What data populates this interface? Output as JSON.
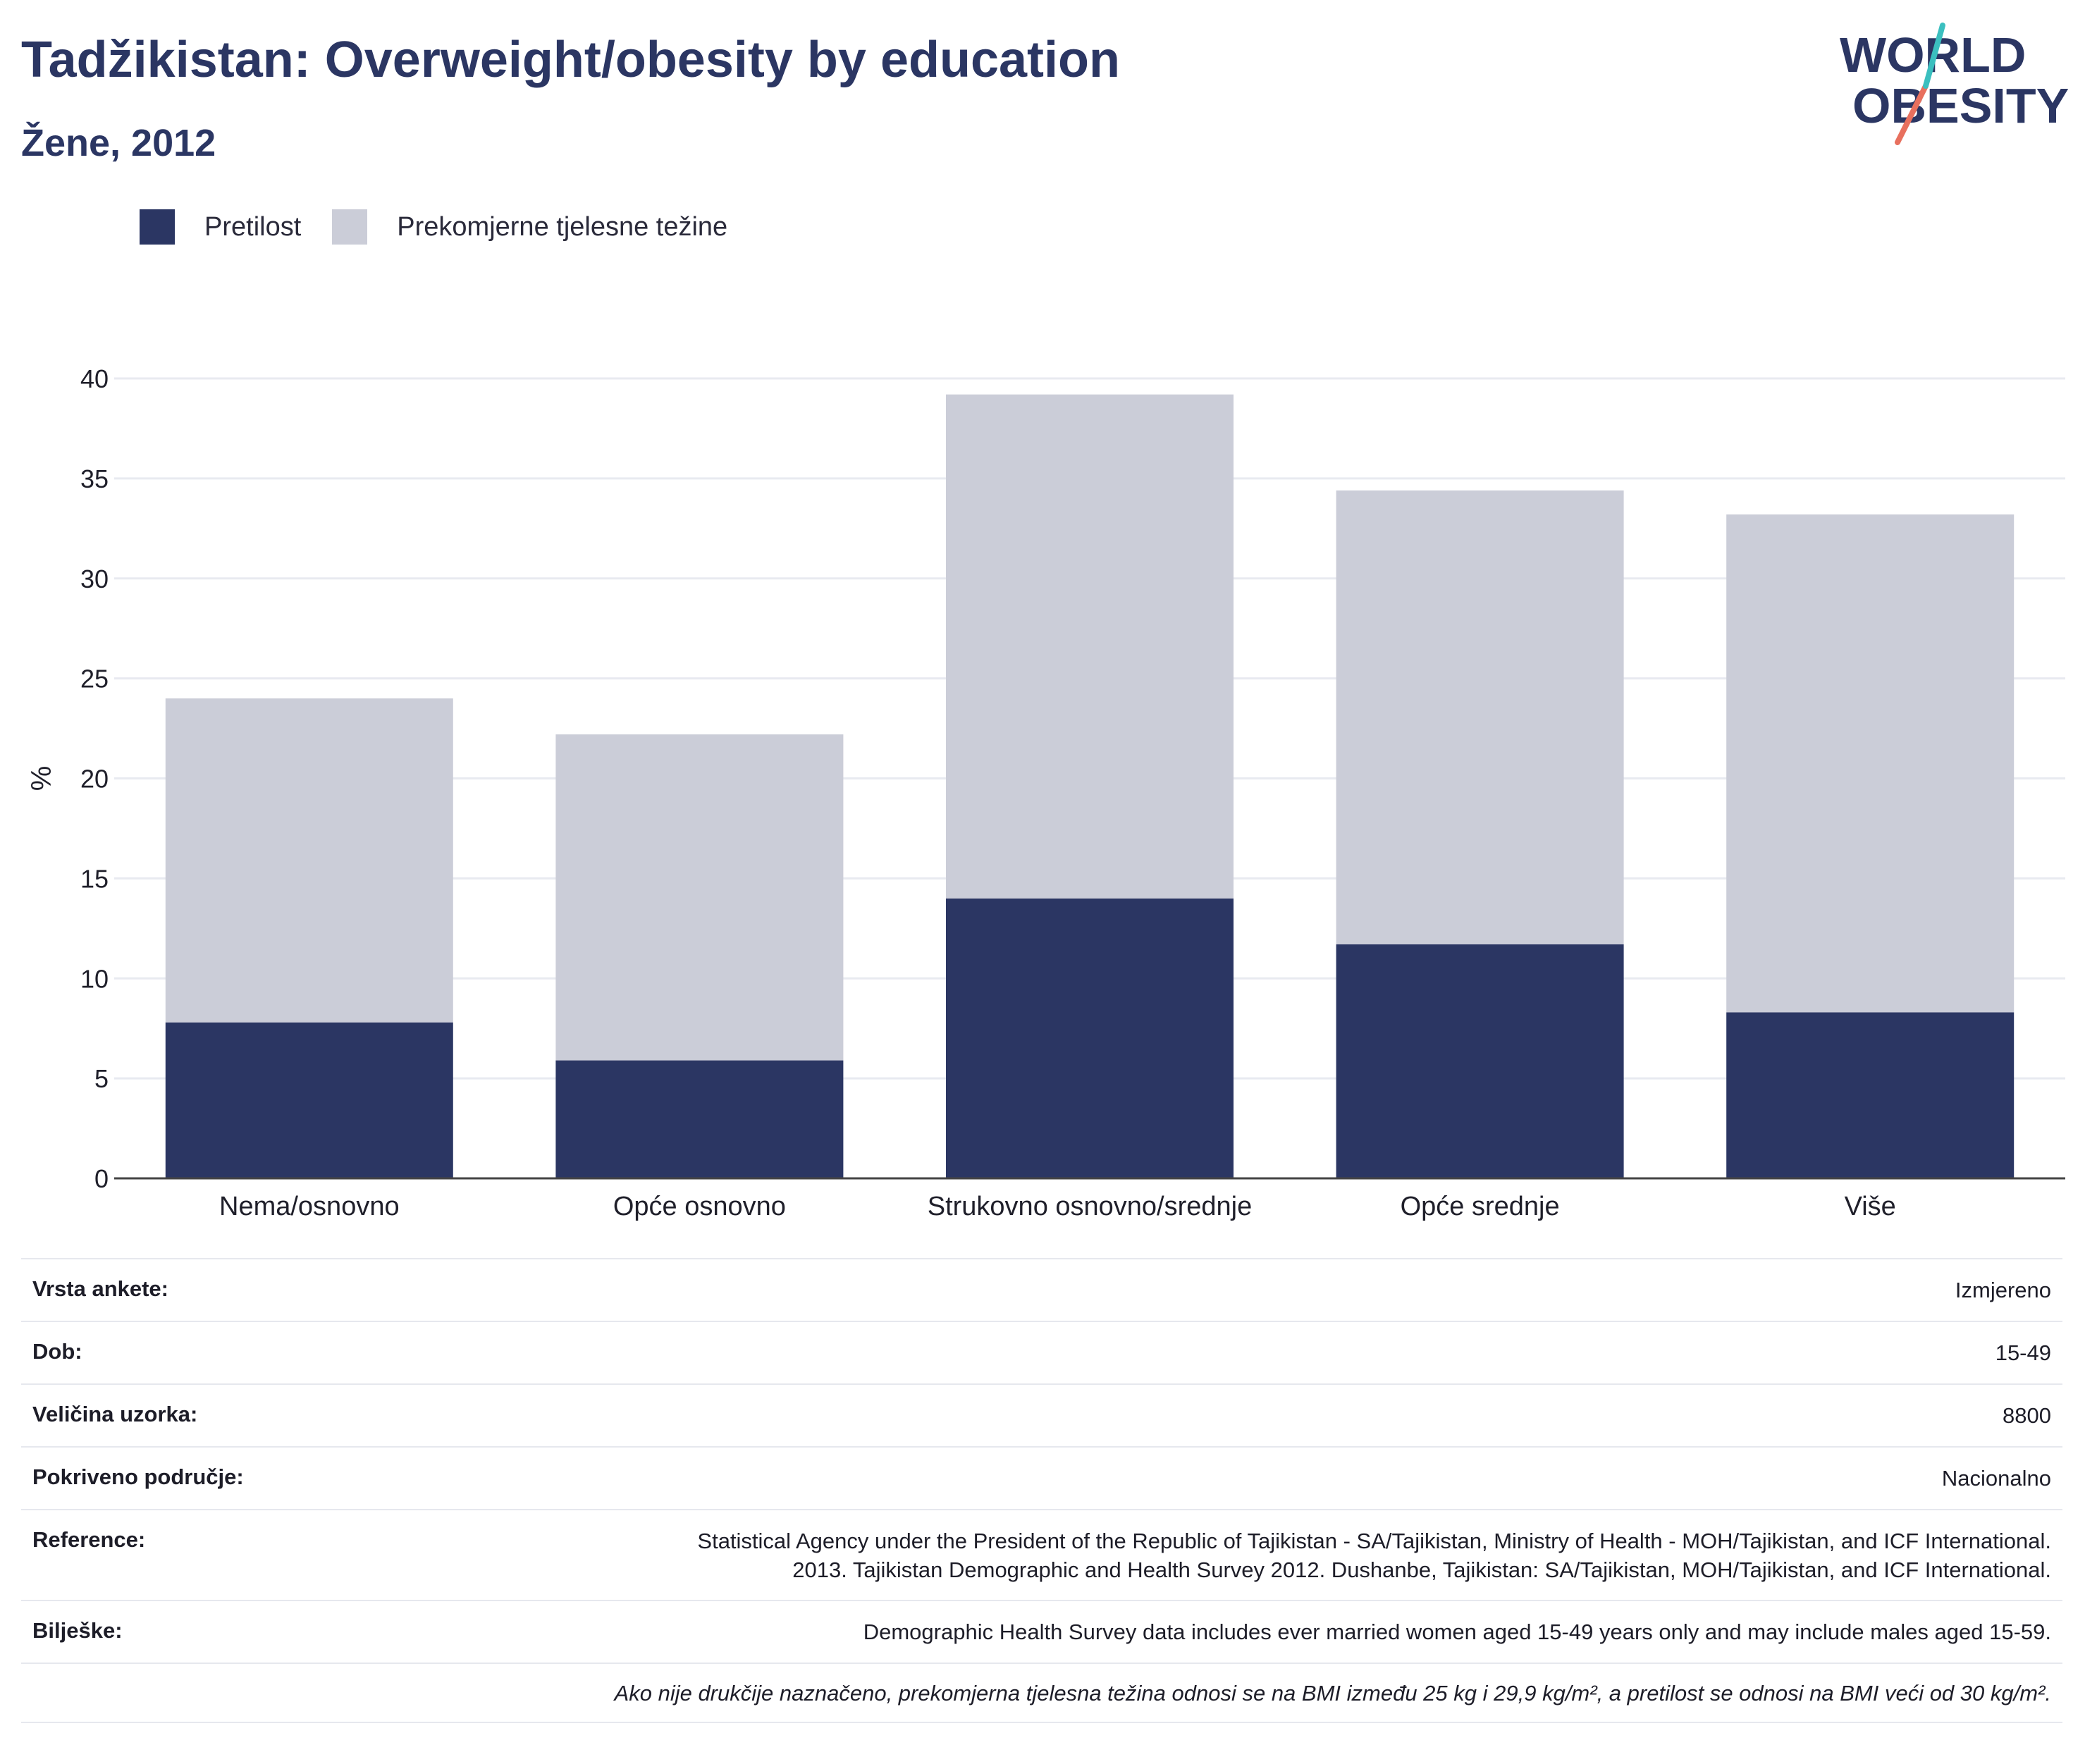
{
  "header": {
    "title": "Tadžikistan: Overweight/obesity by education",
    "subtitle": "Žene, 2012"
  },
  "logo": {
    "line1": "WORLD",
    "line2": "OBESITY"
  },
  "legend": [
    {
      "label": "Pretilost",
      "color": "#2b3663"
    },
    {
      "label": "Prekomjerne tjelesne težine",
      "color": "#cbcdd8"
    }
  ],
  "chart_data": {
    "type": "bar",
    "stacked": true,
    "categories": [
      "Nema/osnovno",
      "Opće osnovno",
      "Strukovno osnovno/srednje",
      "Opće srednje",
      "Više"
    ],
    "series": [
      {
        "name": "Pretilost",
        "values": [
          7.8,
          5.9,
          14.0,
          11.7,
          8.3
        ],
        "color": "#2b3663"
      },
      {
        "name": "Prekomjerne tjelesne težine",
        "values": [
          16.2,
          16.3,
          25.2,
          22.7,
          24.9
        ],
        "color": "#cbcdd8"
      }
    ],
    "ylabel": "%",
    "ylim": [
      0,
      40
    ],
    "yticks": [
      0,
      5,
      10,
      15,
      20,
      25,
      30,
      35,
      40
    ],
    "grid": true
  },
  "meta": {
    "rows": [
      {
        "key": "Vrsta ankete:",
        "value": "Izmjereno"
      },
      {
        "key": "Dob:",
        "value": "15-49"
      },
      {
        "key": "Veličina uzorka:",
        "value": "8800"
      },
      {
        "key": "Pokriveno područje:",
        "value": "Nacionalno"
      },
      {
        "key": "Reference:",
        "value": "Statistical Agency under the President of the Republic of Tajikistan - SA/Tajikistan, Ministry of Health - MOH/Tajikistan, and ICF International. 2013. Tajikistan Demographic and Health Survey 2012. Dushanbe, Tajikistan: SA/Tajikistan, MOH/Tajikistan, and ICF International."
      },
      {
        "key": "Bilješke:",
        "value": "Demographic Health Survey data includes ever married women aged 15-49 years only and may include males aged 15-59."
      }
    ],
    "note": "Ako nije drukčije naznačeno, prekomjerna tjelesna težina odnosi se na BMI između 25 kg i 29,9 kg/m², a pretilost se odnosi na BMI veći od 30 kg/m²."
  }
}
